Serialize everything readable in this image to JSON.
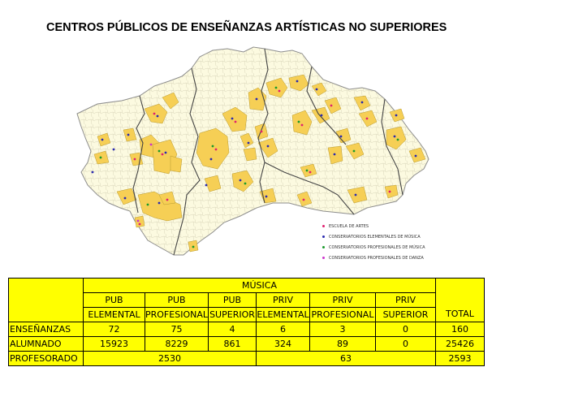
{
  "title": "CENTROS PÚBLICOS DE ENSEÑANZAS ARTÍSTICAS NO SUPERIORES",
  "colors": {
    "region_fill": "#fcfae0",
    "highlight_fill": "#f6cf55",
    "border": "#9a9a9a",
    "province_border": "#444444",
    "table_bg": "#ffff00"
  },
  "legend": [
    {
      "label": "ESCUELA DE ARTES",
      "color": "#e0206f"
    },
    {
      "label": "CONSERVATORIOS ELEMENTALES DE MÚSICA",
      "color": "#2a2ab0"
    },
    {
      "label": "CONSERVATORIOS PROFESIONALES DE MÚSICA",
      "color": "#1a9a2a"
    },
    {
      "label": "CONSERVATORIOS PROFESIONALES DE DANZA",
      "color": "#cc33cc"
    }
  ],
  "table": {
    "group_header": "MÚSICA",
    "type_row": [
      "PUB",
      "PUB",
      "PUB",
      "PRIV",
      "PRIV",
      "PRIV"
    ],
    "level_row": [
      "ELEMENTAL",
      "PROFESIONAL",
      "SUPERIOR",
      "ELEMENTAL",
      "PROFESIONAL",
      "SUPERIOR"
    ],
    "total_header": "TOTAL",
    "rows": [
      {
        "label": "ENSEÑANZAS",
        "values": [
          "72",
          "75",
          "4",
          "6",
          "3",
          "0"
        ],
        "total": "160"
      },
      {
        "label": "ALUMNADO",
        "values": [
          "15923",
          "8229",
          "861",
          "324",
          "89",
          "0"
        ],
        "total": "25426"
      }
    ],
    "teachers": {
      "label": "PROFESORADO",
      "public": "2530",
      "private": "63",
      "total": "2593"
    }
  }
}
